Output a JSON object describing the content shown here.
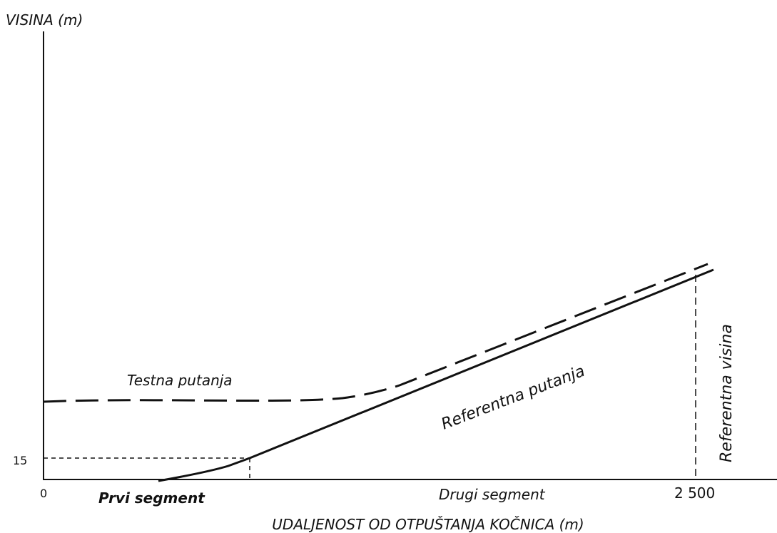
{
  "axes": {
    "y_title": "VISINA (m)",
    "x_title": "UDALJENOST OD OTPUŠTANJA KOČNICA (m)",
    "y_tick": "15",
    "x_ticks": [
      "0",
      "2 500"
    ]
  },
  "segments": [
    "Prvi segment",
    "Drugi segment"
  ],
  "paths": {
    "test": "Testna putanja",
    "reference": "Referentna putanja",
    "reference_height": "Referentna visina"
  }
}
